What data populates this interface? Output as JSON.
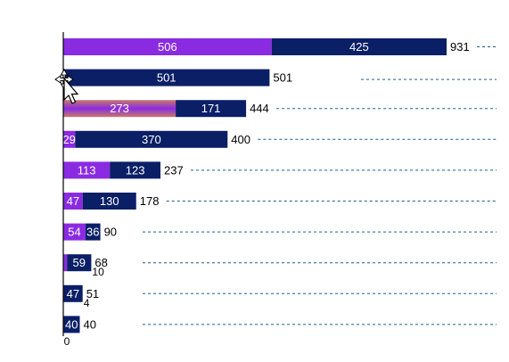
{
  "chart_data": {
    "type": "bar",
    "orientation": "horizontal",
    "stacked": true,
    "title": "",
    "xlabel": "",
    "ylabel": "",
    "axis_zero_label": "0",
    "colors": {
      "purple": "#8a2be2",
      "navy": "#0b1f66",
      "dash": "#1f5f8b"
    },
    "rows": [
      {
        "purple": 506,
        "navy": 425,
        "total": 931
      },
      {
        "purple": 0,
        "navy": 501,
        "total": 501
      },
      {
        "purple": 273,
        "navy": 171,
        "total": 444,
        "highlighted": true
      },
      {
        "purple": 29,
        "navy": 370,
        "total": 400
      },
      {
        "purple": 113,
        "navy": 123,
        "total": 237
      },
      {
        "purple": 47,
        "navy": 130,
        "total": 178
      },
      {
        "purple": 54,
        "navy": 36,
        "total": 90
      },
      {
        "purple": 9,
        "navy": 59,
        "total": 68,
        "extra_label": "10"
      },
      {
        "purple": 0,
        "navy": 47,
        "total": 51,
        "extra_label": "4"
      },
      {
        "purple": 0,
        "navy": 40,
        "total": 40
      }
    ],
    "xlim": [
      0,
      931
    ],
    "grid": false,
    "legend": "none"
  },
  "ui": {
    "cursor": "move-arrow-cursor"
  }
}
